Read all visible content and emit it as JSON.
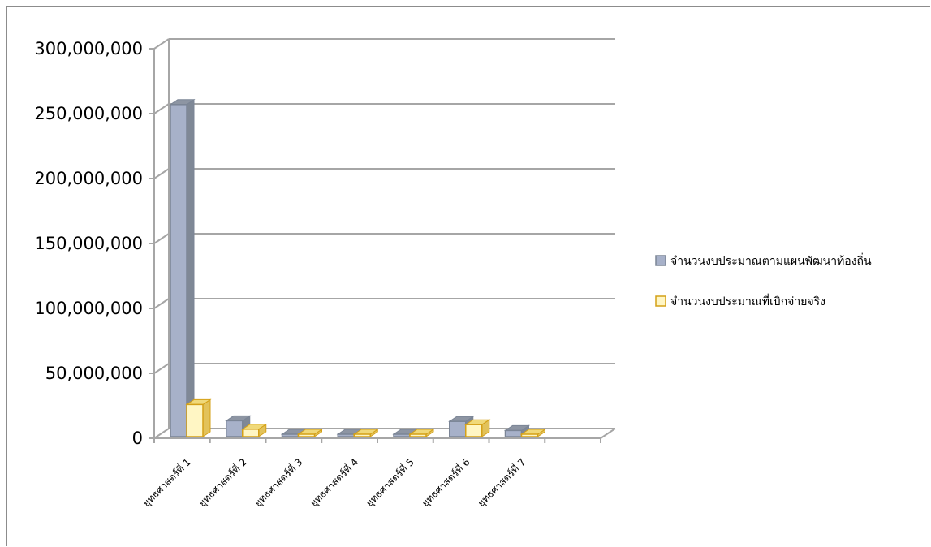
{
  "chart_data": {
    "type": "bar",
    "title": "",
    "xlabel": "",
    "ylabel": "",
    "ylim": [
      0,
      300000000
    ],
    "yticks": [
      "0",
      "50,000,000",
      "100,000,000",
      "150,000,000",
      "200,000,000",
      "250,000,000",
      "300,000,000"
    ],
    "categories": [
      "ยุทธศาสตร์ที่ 1",
      "ยุทธศาสตร์ที่ 2",
      "ยุทธศาสตร์ที่ 3",
      "ยุทธศาสตร์ที่ 4",
      "ยุทธศาสตร์ที่ 5",
      "ยุทธศาสตร์ที่ 6",
      "ยุทธศาสตร์ที่ 7"
    ],
    "series": [
      {
        "name": "จำนวนงบประมาณตามแผนพัฒนาท้องถิ่น",
        "color": "#a7b1c9",
        "values": [
          257000000,
          13500000,
          500000,
          700000,
          1500000,
          13000000,
          6000000
        ]
      },
      {
        "name": "จำนวนงบประมาณที่เบิกจ่ายจริง",
        "color": "#fff6c4",
        "values": [
          26000000,
          7000000,
          200000,
          300000,
          500000,
          10500000,
          3000000
        ]
      }
    ],
    "grid": true,
    "legend_position": "right"
  }
}
